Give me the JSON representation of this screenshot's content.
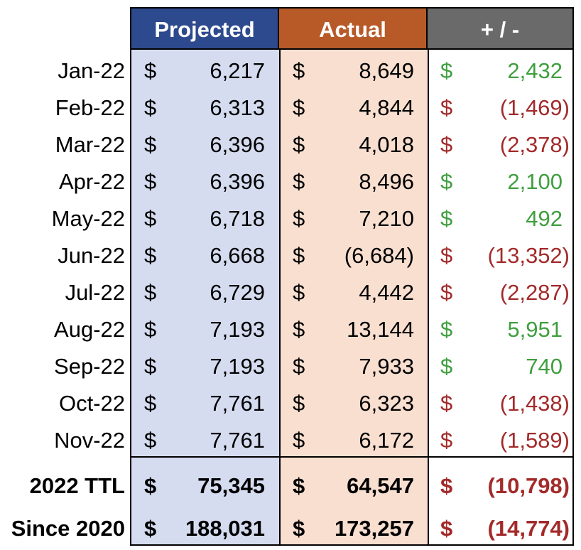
{
  "headers": {
    "projected": "Projected",
    "actual": "Actual",
    "diff": "+ / -"
  },
  "currency": "$",
  "colors": {
    "projected_header": "#2e4a8f",
    "actual_header": "#b85a28",
    "diff_header": "#6a6a6a",
    "projected_band": "#d6dcf0",
    "actual_band": "#f8dfd0",
    "positive": "#3f9f3f",
    "negative": "#a32a2a"
  },
  "months": [
    {
      "label": "Jan-22",
      "projected": "6,217",
      "actual": "8,649",
      "diff": "2,432",
      "sign": "pos"
    },
    {
      "label": "Feb-22",
      "projected": "6,313",
      "actual": "4,844",
      "diff": "(1,469)",
      "sign": "neg"
    },
    {
      "label": "Mar-22",
      "projected": "6,396",
      "actual": "4,018",
      "diff": "(2,378)",
      "sign": "neg"
    },
    {
      "label": "Apr-22",
      "projected": "6,396",
      "actual": "8,496",
      "diff": "2,100",
      "sign": "pos"
    },
    {
      "label": "May-22",
      "projected": "6,718",
      "actual": "7,210",
      "diff": "492",
      "sign": "pos"
    },
    {
      "label": "Jun-22",
      "projected": "6,668",
      "actual": "(6,684)",
      "diff": "(13,352)",
      "sign": "neg"
    },
    {
      "label": "Jul-22",
      "projected": "6,729",
      "actual": "4,442",
      "diff": "(2,287)",
      "sign": "neg"
    },
    {
      "label": "Aug-22",
      "projected": "7,193",
      "actual": "13,144",
      "diff": "5,951",
      "sign": "pos"
    },
    {
      "label": "Sep-22",
      "projected": "7,193",
      "actual": "7,933",
      "diff": "740",
      "sign": "pos"
    },
    {
      "label": "Oct-22",
      "projected": "7,761",
      "actual": "6,323",
      "diff": "(1,438)",
      "sign": "neg"
    },
    {
      "label": "Nov-22",
      "projected": "7,761",
      "actual": "6,172",
      "diff": "(1,589)",
      "sign": "neg"
    }
  ],
  "totals": [
    {
      "label": "2022 TTL",
      "projected": "75,345",
      "actual": "64,547",
      "diff": "(10,798)",
      "sign": "neg"
    },
    {
      "label": "Since 2020",
      "projected": "188,031",
      "actual": "173,257",
      "diff": "(14,774)",
      "sign": "neg"
    }
  ]
}
